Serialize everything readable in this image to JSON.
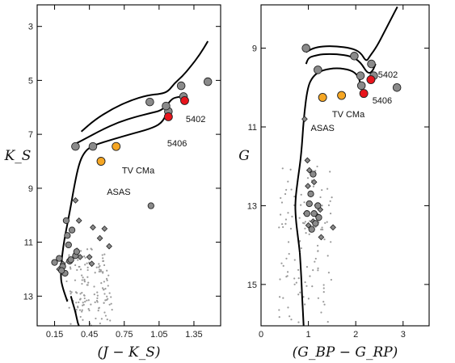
{
  "chart_data": [
    {
      "type": "scatter",
      "panel": "left",
      "title": "",
      "xlabel": "(J − K_S)",
      "ylabel": "K_S",
      "xlim": [
        0.0,
        1.58
      ],
      "ylim": [
        14.1,
        2.2
      ],
      "y_inverted": true,
      "xticks": [
        "0.15",
        "0.45",
        "0.75",
        "1.05",
        "1.35"
      ],
      "xtick_values": [
        0.15,
        0.45,
        0.75,
        1.05,
        1.35
      ],
      "yticks": [
        "3",
        "5",
        "7",
        "9",
        "11",
        "13"
      ],
      "ytick_values": [
        3,
        5,
        7,
        9,
        11,
        13
      ],
      "grid": false,
      "annotations": [
        {
          "text": "5402",
          "x": 1.28,
          "y": 6.55
        },
        {
          "text": "5406",
          "x": 1.12,
          "y": 7.45
        },
        {
          "text": "TV CMa",
          "x": 0.73,
          "y": 8.45
        },
        {
          "text": "ASAS",
          "x": 0.6,
          "y": 9.25
        }
      ],
      "series": [
        {
          "role": "isochrone",
          "x": [
            0.33,
            0.42,
            0.55,
            0.7,
            0.85,
            0.97,
            1.07,
            1.13,
            1.17,
            1.24
          ],
          "y": [
            7.35,
            7.15,
            6.85,
            6.55,
            6.35,
            6.22,
            6.12,
            5.85,
            5.65,
            5.6
          ]
        },
        {
          "role": "isochrone",
          "x": [
            0.38,
            0.5,
            0.65,
            0.8,
            0.95,
            1.07,
            1.13,
            1.18,
            1.25,
            1.32,
            1.4,
            1.47
          ],
          "y": [
            6.9,
            6.45,
            6.05,
            5.75,
            5.55,
            5.5,
            5.4,
            5.12,
            4.85,
            4.5,
            4.05,
            3.55
          ]
        },
        {
          "role": "isochrone",
          "x": [
            0.26,
            0.22,
            0.2,
            0.22,
            0.28,
            0.32,
            0.36,
            0.4,
            0.46,
            0.6,
            0.8,
            0.97,
            1.07,
            1.12
          ],
          "y": [
            13.2,
            12.7,
            12.3,
            11.2,
            9.9,
            8.9,
            8.1,
            7.7,
            7.45,
            7.25,
            7.0,
            6.8,
            6.6,
            6.2
          ]
        },
        {
          "role": "isochrone",
          "x": [
            0.29,
            0.31,
            0.33,
            0.34,
            0.35,
            0.36
          ],
          "y": [
            13.0,
            13.3,
            13.6,
            13.8,
            14.0,
            14.1
          ]
        },
        {
          "role": "cluster-circles",
          "x": [
            0.33,
            0.48,
            0.97,
            1.13,
            1.11,
            1.24,
            1.26,
            1.47,
            0.98,
            0.25,
            0.26,
            0.3,
            0.27,
            0.33,
            0.34,
            0.28,
            0.15,
            0.19,
            0.22,
            0.24,
            0.21,
            0.29
          ],
          "y": [
            7.45,
            7.45,
            5.8,
            6.15,
            5.95,
            5.2,
            5.6,
            5.05,
            9.65,
            10.2,
            10.75,
            10.55,
            11.1,
            11.5,
            11.35,
            11.7,
            11.75,
            11.6,
            11.9,
            12.15,
            12.05,
            11.65
          ]
        },
        {
          "role": "highlight-red",
          "label": "5402/5406",
          "x": [
            1.27,
            1.13
          ],
          "y": [
            5.75,
            6.35
          ]
        },
        {
          "role": "highlight-orange",
          "label": "TV CMa / ASAS",
          "x": [
            0.68,
            0.55
          ],
          "y": [
            7.45,
            8.0
          ]
        },
        {
          "role": "diamonds",
          "x": [
            0.33,
            0.36,
            0.48,
            0.54,
            0.58,
            0.62,
            0.47,
            0.45,
            0.37,
            0.22,
            0.19
          ],
          "y": [
            9.45,
            10.2,
            10.45,
            10.85,
            10.5,
            11.15,
            11.8,
            11.55,
            11.55,
            11.8,
            12.0
          ]
        },
        {
          "role": "field-dots",
          "x": [],
          "y": []
        }
      ],
      "colors": {
        "circle": "#8a8a8a",
        "red": "#e8141c",
        "orange": "#f5a623",
        "diamond": "#8a8a8a",
        "field": "#9a9a9a",
        "line": "#000000"
      }
    },
    {
      "type": "scatter",
      "panel": "right",
      "title": "",
      "xlabel": "(G_BP − G_RP)",
      "ylabel": "G",
      "xlim": [
        0.0,
        3.55
      ],
      "ylim": [
        16.05,
        7.9
      ],
      "y_inverted": true,
      "xticks": [
        "0",
        "1",
        "2",
        "3"
      ],
      "xtick_values": [
        0,
        1,
        2,
        3
      ],
      "yticks": [
        "9",
        "11",
        "13",
        "15"
      ],
      "ytick_values": [
        9,
        11,
        13,
        15
      ],
      "grid": false,
      "annotations": [
        {
          "text": "5402",
          "x": 2.47,
          "y": 9.75
        },
        {
          "text": "5406",
          "x": 2.35,
          "y": 10.4
        },
        {
          "text": "TV CMa",
          "x": 1.5,
          "y": 10.75
        },
        {
          "text": "ASAS",
          "x": 1.05,
          "y": 11.1
        }
      ],
      "series": [
        {
          "role": "isochrone",
          "x": [
            0.95,
            1.0,
            1.1,
            1.3,
            1.6,
            1.9,
            2.1,
            2.25,
            2.35,
            2.42
          ],
          "y": [
            9.4,
            9.25,
            9.2,
            9.15,
            9.15,
            9.2,
            9.35,
            9.65,
            9.6,
            9.4
          ]
        },
        {
          "role": "isochrone",
          "x": [
            0.95,
            1.1,
            1.3,
            1.6,
            1.9,
            2.1,
            2.22,
            2.3,
            2.45,
            2.6,
            2.75,
            2.88
          ],
          "y": [
            9.1,
            9.0,
            8.95,
            8.95,
            9.0,
            9.1,
            9.35,
            9.2,
            8.95,
            8.6,
            8.25,
            7.95
          ]
        },
        {
          "role": "isochrone",
          "x": [
            0.82,
            0.78,
            0.73,
            0.72,
            0.78,
            0.85,
            0.9,
            0.98,
            1.1,
            1.3,
            1.6,
            1.9,
            2.05,
            2.1,
            2.12
          ],
          "y": [
            14.2,
            13.8,
            13.3,
            12.9,
            12.3,
            11.7,
            10.8,
            10.0,
            9.7,
            9.55,
            9.5,
            9.55,
            9.7,
            9.9,
            10.05
          ]
        },
        {
          "role": "isochrone",
          "x": [
            0.82,
            0.85,
            0.87,
            0.89,
            0.9
          ],
          "y": [
            14.2,
            14.8,
            15.4,
            15.8,
            16.05
          ]
        },
        {
          "role": "cluster-circles",
          "x": [
            0.95,
            1.2,
            1.97,
            2.1,
            2.12,
            2.33,
            2.38,
            2.87,
            1.1,
            1.05,
            1.2,
            1.02,
            0.97,
            1.12,
            1.22,
            1.15,
            1.07
          ],
          "y": [
            9.0,
            9.55,
            9.2,
            9.7,
            9.95,
            9.4,
            9.7,
            10.0,
            12.2,
            12.7,
            13.0,
            12.95,
            13.2,
            13.2,
            13.3,
            13.45,
            13.6
          ]
        },
        {
          "role": "highlight-red",
          "label": "5402/5406",
          "x": [
            2.32,
            2.17
          ],
          "y": [
            9.8,
            10.15
          ]
        },
        {
          "role": "highlight-orange",
          "label": "TV CMa / ASAS",
          "x": [
            1.7,
            1.3
          ],
          "y": [
            10.2,
            10.25
          ]
        },
        {
          "role": "diamonds",
          "x": [
            0.92,
            0.98,
            1.02,
            1.12,
            0.99,
            1.25,
            1.18,
            1.1,
            0.95,
            1.0,
            1.52,
            1.27
          ],
          "y": [
            10.8,
            11.85,
            12.1,
            12.4,
            12.5,
            13.1,
            13.25,
            13.4,
            13.2,
            13.5,
            13.55,
            13.8
          ]
        },
        {
          "role": "field-dots",
          "x": [],
          "y": []
        }
      ],
      "colors": {
        "circle": "#8a8a8a",
        "red": "#e8141c",
        "orange": "#f5a623",
        "diamond": "#8a8a8a",
        "field": "#9a9a9a",
        "line": "#000000"
      }
    }
  ]
}
